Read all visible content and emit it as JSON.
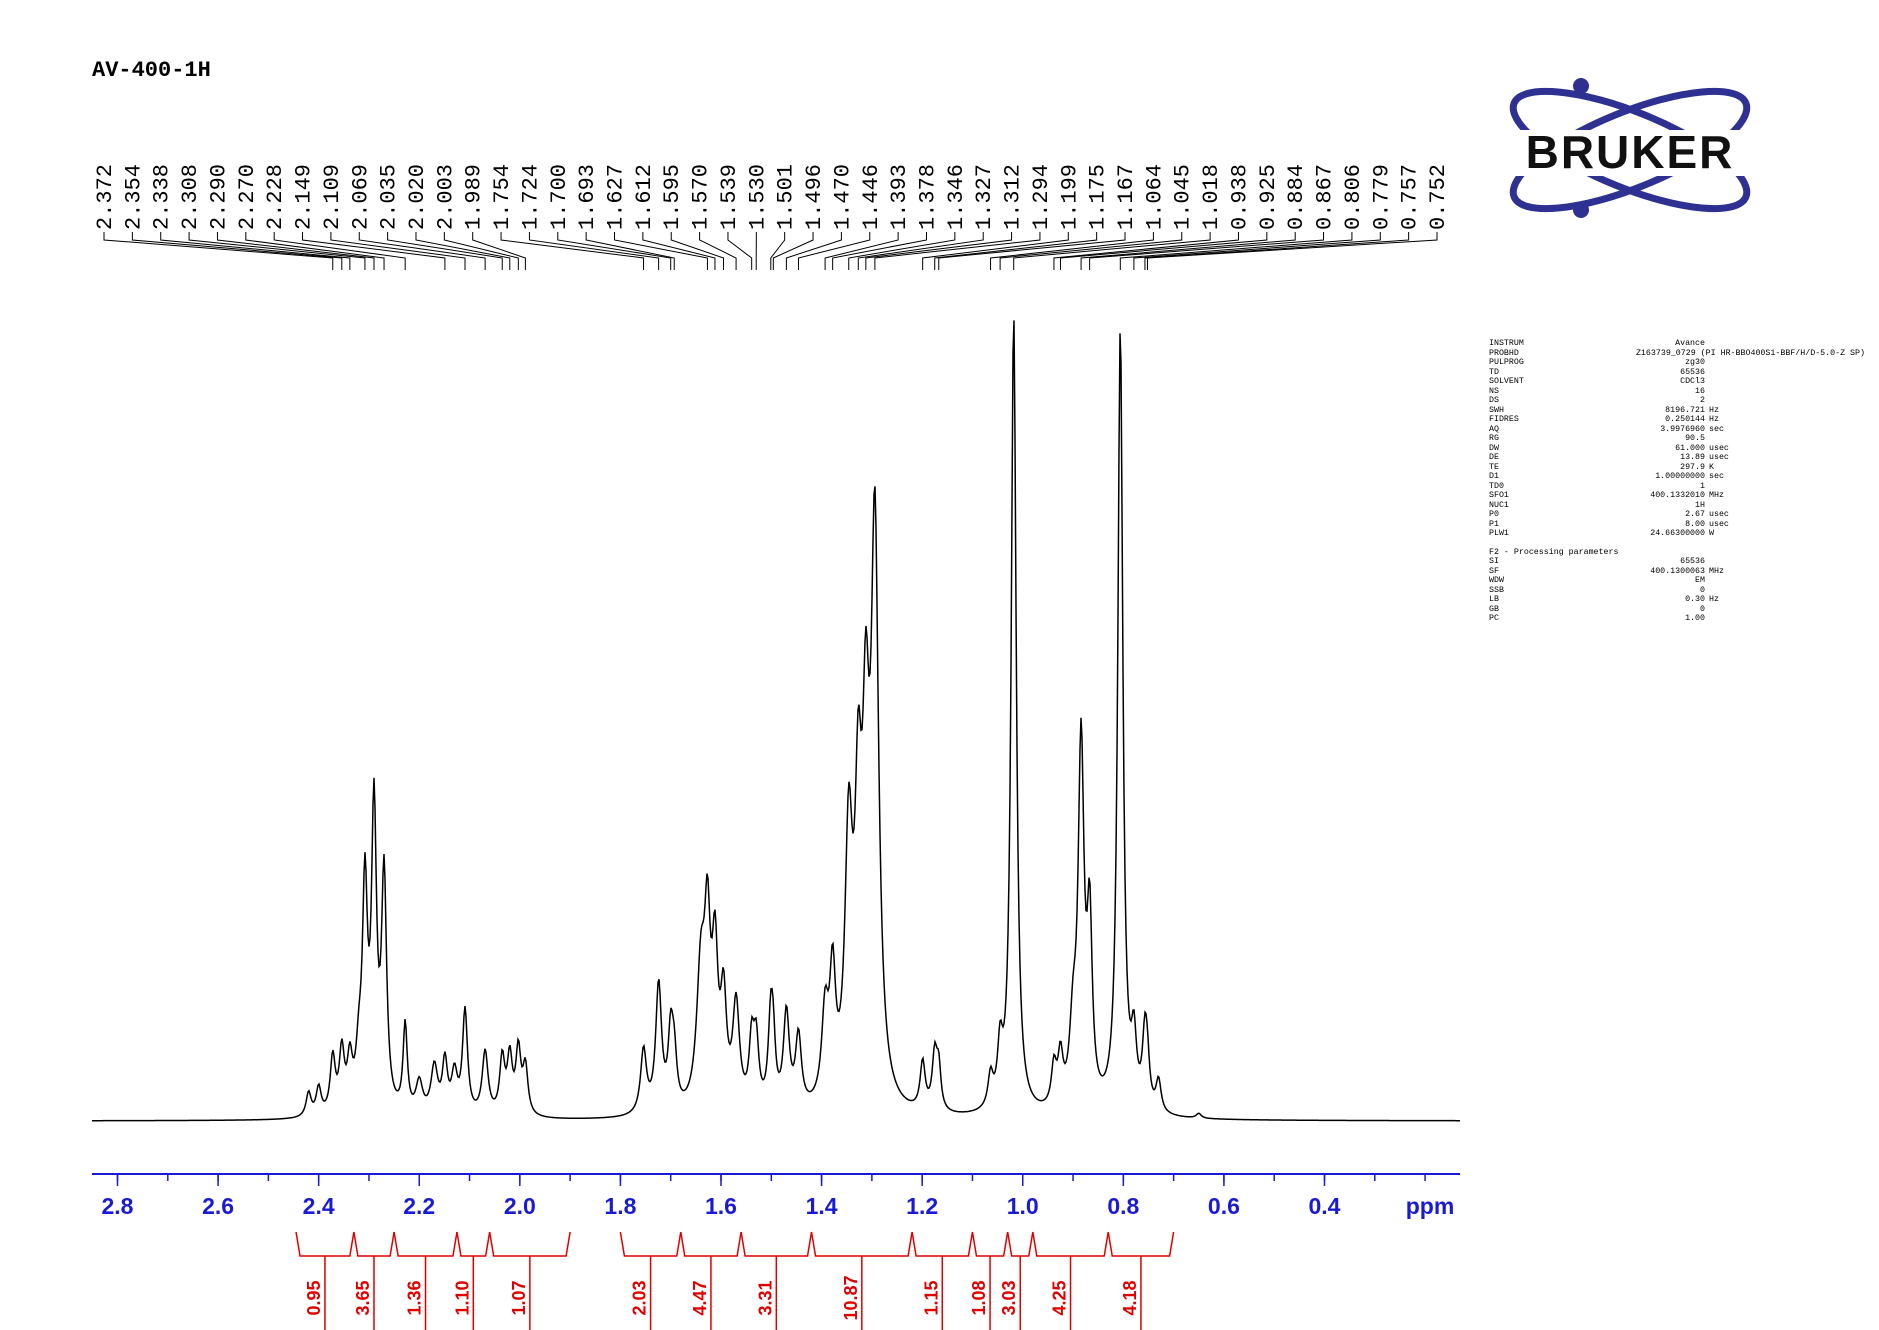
{
  "title": "AV-400-1H",
  "logo_text": "BRUKER",
  "colors": {
    "axis": "#1a1ad6",
    "integral": "#e00000",
    "spectrum": "#000000",
    "logo": "#2e3192"
  },
  "peak_labels": [
    "2.372",
    "2.354",
    "2.338",
    "2.308",
    "2.290",
    "2.270",
    "2.228",
    "2.149",
    "2.109",
    "2.069",
    "2.035",
    "2.020",
    "2.003",
    "1.989",
    "1.754",
    "1.724",
    "1.700",
    "1.693",
    "1.627",
    "1.612",
    "1.595",
    "1.570",
    "1.539",
    "1.530",
    "1.501",
    "1.496",
    "1.470",
    "1.446",
    "1.393",
    "1.378",
    "1.346",
    "1.327",
    "1.312",
    "1.294",
    "1.199",
    "1.175",
    "1.167",
    "1.064",
    "1.045",
    "1.018",
    "0.938",
    "0.925",
    "0.884",
    "0.867",
    "0.806",
    "0.779",
    "0.757",
    "0.752"
  ],
  "params": {
    "acq": [
      {
        "k": "INSTRUM",
        "v": "Avance",
        "u": ""
      },
      {
        "k": "PROBHD",
        "v": "Z163739_0729 (PI HR-BBO400S1-BBF/H/D-5.0-Z SP)",
        "u": ""
      },
      {
        "k": "PULPROG",
        "v": "zg30",
        "u": ""
      },
      {
        "k": "TD",
        "v": "65536",
        "u": ""
      },
      {
        "k": "SOLVENT",
        "v": "CDCl3",
        "u": ""
      },
      {
        "k": "NS",
        "v": "16",
        "u": ""
      },
      {
        "k": "DS",
        "v": "2",
        "u": ""
      },
      {
        "k": "SWH",
        "v": "8196.721",
        "u": "Hz"
      },
      {
        "k": "FIDRES",
        "v": "0.250144",
        "u": "Hz"
      },
      {
        "k": "AQ",
        "v": "3.9976960",
        "u": "sec"
      },
      {
        "k": "RG",
        "v": "90.5",
        "u": ""
      },
      {
        "k": "DW",
        "v": "61.000",
        "u": "usec"
      },
      {
        "k": "DE",
        "v": "13.89",
        "u": "usec"
      },
      {
        "k": "TE",
        "v": "297.9",
        "u": "K"
      },
      {
        "k": "D1",
        "v": "1.00000000",
        "u": "sec"
      },
      {
        "k": "TD0",
        "v": "1",
        "u": ""
      },
      {
        "k": "SFO1",
        "v": "400.1332010",
        "u": "MHz"
      },
      {
        "k": "NUC1",
        "v": "1H",
        "u": ""
      },
      {
        "k": "P0",
        "v": "2.67",
        "u": "usec"
      },
      {
        "k": "P1",
        "v": "8.00",
        "u": "usec"
      },
      {
        "k": "PLW1",
        "v": "24.66300000",
        "u": "W"
      }
    ],
    "proc_title": "F2 - Processing parameters",
    "proc": [
      {
        "k": "SI",
        "v": "65536",
        "u": ""
      },
      {
        "k": "SF",
        "v": "400.1300063",
        "u": "MHz"
      },
      {
        "k": "WDW",
        "v": "EM",
        "u": ""
      },
      {
        "k": "SSB",
        "v": "0",
        "u": ""
      },
      {
        "k": "LB",
        "v": "0.30",
        "u": "Hz"
      },
      {
        "k": "GB",
        "v": "0",
        "u": ""
      },
      {
        "k": "PC",
        "v": "1.00",
        "u": ""
      }
    ]
  },
  "chart_data": {
    "type": "line",
    "xlabel": "ppm",
    "xlim": [
      2.85,
      0.0
    ],
    "x_reversed": true,
    "x_ticks": [
      "2.8",
      "2.6",
      "2.4",
      "2.2",
      "2.0",
      "1.8",
      "1.6",
      "1.4",
      "1.2",
      "1.0",
      "0.8",
      "0.6",
      "0.4"
    ],
    "x_tick_values": [
      2.8,
      2.6,
      2.4,
      2.2,
      2.0,
      1.8,
      1.6,
      1.4,
      1.2,
      1.0,
      0.8,
      0.6,
      0.4
    ],
    "peaks": [
      {
        "ppm": 2.42,
        "h": 0.03,
        "w": 0.006
      },
      {
        "ppm": 2.4,
        "h": 0.035,
        "w": 0.006
      },
      {
        "ppm": 2.372,
        "h": 0.07,
        "w": 0.006
      },
      {
        "ppm": 2.354,
        "h": 0.075,
        "w": 0.006
      },
      {
        "ppm": 2.338,
        "h": 0.06,
        "w": 0.006
      },
      {
        "ppm": 2.32,
        "h": 0.06,
        "w": 0.007
      },
      {
        "ppm": 2.308,
        "h": 0.27,
        "w": 0.006
      },
      {
        "ppm": 2.29,
        "h": 0.37,
        "w": 0.006
      },
      {
        "ppm": 2.27,
        "h": 0.29,
        "w": 0.006
      },
      {
        "ppm": 2.228,
        "h": 0.11,
        "w": 0.005
      },
      {
        "ppm": 2.2,
        "h": 0.04,
        "w": 0.008
      },
      {
        "ppm": 2.17,
        "h": 0.06,
        "w": 0.008
      },
      {
        "ppm": 2.149,
        "h": 0.065,
        "w": 0.006
      },
      {
        "ppm": 2.13,
        "h": 0.05,
        "w": 0.007
      },
      {
        "ppm": 2.109,
        "h": 0.13,
        "w": 0.006
      },
      {
        "ppm": 2.069,
        "h": 0.08,
        "w": 0.007
      },
      {
        "ppm": 2.035,
        "h": 0.07,
        "w": 0.006
      },
      {
        "ppm": 2.02,
        "h": 0.07,
        "w": 0.006
      },
      {
        "ppm": 2.003,
        "h": 0.08,
        "w": 0.006
      },
      {
        "ppm": 1.989,
        "h": 0.06,
        "w": 0.006
      },
      {
        "ppm": 1.754,
        "h": 0.08,
        "w": 0.007
      },
      {
        "ppm": 1.724,
        "h": 0.16,
        "w": 0.007
      },
      {
        "ppm": 1.7,
        "h": 0.09,
        "w": 0.006
      },
      {
        "ppm": 1.693,
        "h": 0.06,
        "w": 0.006
      },
      {
        "ppm": 1.64,
        "h": 0.17,
        "w": 0.01
      },
      {
        "ppm": 1.627,
        "h": 0.2,
        "w": 0.007
      },
      {
        "ppm": 1.612,
        "h": 0.18,
        "w": 0.007
      },
      {
        "ppm": 1.595,
        "h": 0.13,
        "w": 0.007
      },
      {
        "ppm": 1.57,
        "h": 0.13,
        "w": 0.008
      },
      {
        "ppm": 1.539,
        "h": 0.08,
        "w": 0.006
      },
      {
        "ppm": 1.53,
        "h": 0.08,
        "w": 0.006
      },
      {
        "ppm": 1.501,
        "h": 0.11,
        "w": 0.006
      },
      {
        "ppm": 1.496,
        "h": 0.06,
        "w": 0.005
      },
      {
        "ppm": 1.47,
        "h": 0.12,
        "w": 0.007
      },
      {
        "ppm": 1.446,
        "h": 0.09,
        "w": 0.007
      },
      {
        "ppm": 1.393,
        "h": 0.11,
        "w": 0.008
      },
      {
        "ppm": 1.378,
        "h": 0.15,
        "w": 0.007
      },
      {
        "ppm": 1.346,
        "h": 0.32,
        "w": 0.009
      },
      {
        "ppm": 1.327,
        "h": 0.32,
        "w": 0.008
      },
      {
        "ppm": 1.312,
        "h": 0.38,
        "w": 0.008
      },
      {
        "ppm": 1.294,
        "h": 0.7,
        "w": 0.009
      },
      {
        "ppm": 1.199,
        "h": 0.06,
        "w": 0.006
      },
      {
        "ppm": 1.175,
        "h": 0.07,
        "w": 0.006
      },
      {
        "ppm": 1.167,
        "h": 0.05,
        "w": 0.005
      },
      {
        "ppm": 1.064,
        "h": 0.04,
        "w": 0.006
      },
      {
        "ppm": 1.045,
        "h": 0.07,
        "w": 0.006
      },
      {
        "ppm": 1.018,
        "h": 1.0,
        "w": 0.006
      },
      {
        "ppm": 0.938,
        "h": 0.05,
        "w": 0.006
      },
      {
        "ppm": 0.925,
        "h": 0.06,
        "w": 0.006
      },
      {
        "ppm": 0.9,
        "h": 0.09,
        "w": 0.008
      },
      {
        "ppm": 0.884,
        "h": 0.45,
        "w": 0.007
      },
      {
        "ppm": 0.867,
        "h": 0.22,
        "w": 0.006
      },
      {
        "ppm": 0.806,
        "h": 0.98,
        "w": 0.006
      },
      {
        "ppm": 0.779,
        "h": 0.08,
        "w": 0.006
      },
      {
        "ppm": 0.757,
        "h": 0.09,
        "w": 0.006
      },
      {
        "ppm": 0.752,
        "h": 0.04,
        "w": 0.005
      },
      {
        "ppm": 0.73,
        "h": 0.04,
        "w": 0.006
      },
      {
        "ppm": 0.65,
        "h": 0.006,
        "w": 0.006
      }
    ],
    "integrals": [
      {
        "from": 2.445,
        "to": 2.33,
        "value": "0.95"
      },
      {
        "from": 2.33,
        "to": 2.25,
        "value": "3.65"
      },
      {
        "from": 2.25,
        "to": 2.125,
        "value": "1.36"
      },
      {
        "from": 2.125,
        "to": 2.06,
        "value": "1.10"
      },
      {
        "from": 2.06,
        "to": 1.9,
        "value": "1.07"
      },
      {
        "from": 1.8,
        "to": 1.68,
        "value": "2.03"
      },
      {
        "from": 1.68,
        "to": 1.56,
        "value": "4.47"
      },
      {
        "from": 1.56,
        "to": 1.42,
        "value": "3.31"
      },
      {
        "from": 1.42,
        "to": 1.22,
        "value": "10.87"
      },
      {
        "from": 1.22,
        "to": 1.1,
        "value": "1.15"
      },
      {
        "from": 1.1,
        "to": 1.03,
        "value": "1.08"
      },
      {
        "from": 1.03,
        "to": 0.98,
        "value": "3.03"
      },
      {
        "from": 0.98,
        "to": 0.83,
        "value": "4.25"
      },
      {
        "from": 0.83,
        "to": 0.7,
        "value": "4.18"
      }
    ]
  }
}
